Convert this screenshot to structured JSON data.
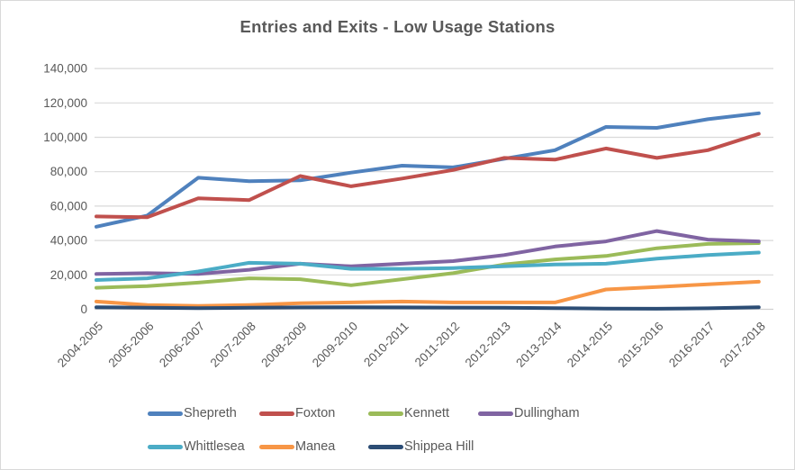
{
  "window": {
    "background": "#ffffff",
    "border_color": "#d9d9d9"
  },
  "chart_data": {
    "type": "line",
    "title": "Entries and Exits - Low Usage Stations",
    "title_color": "#595959",
    "text_color": "#595959",
    "gridline_color": "#d9d9d9",
    "axis_line_color": "#d0d0d0",
    "grid": "horizontal",
    "legend_position": "bottom",
    "xlabel": "",
    "ylabel": "",
    "ylim": [
      0,
      140000
    ],
    "ytick_step": 20000,
    "ytick_labels": [
      "0",
      "20,000",
      "40,000",
      "60,000",
      "80,000",
      "100,000",
      "120,000",
      "140,000"
    ],
    "categories": [
      "2004-2005",
      "2005-2006",
      "2006-2007",
      "2007-2008",
      "2008-2009",
      "2009-2010",
      "2010-2011",
      "2011-2012",
      "2012-2013",
      "2013-2014",
      "2014-2015",
      "2015-2016",
      "2016-2017",
      "2017-2018"
    ],
    "series": [
      {
        "name": "Shepreth",
        "color": "#4F81BD",
        "values": [
          48000,
          54500,
          76500,
          74500,
          75000,
          79500,
          83500,
          82500,
          87500,
          92500,
          106000,
          105500,
          110500,
          114000
        ]
      },
      {
        "name": "Foxton",
        "color": "#C0504D",
        "values": [
          54000,
          53500,
          64500,
          63500,
          77500,
          71500,
          76000,
          81000,
          88000,
          87000,
          93500,
          88000,
          92500,
          102000
        ]
      },
      {
        "name": "Kennett",
        "color": "#9BBB59",
        "values": [
          12500,
          13500,
          15500,
          18000,
          17500,
          14000,
          17500,
          21000,
          26000,
          29000,
          31000,
          35500,
          38000,
          38500
        ]
      },
      {
        "name": "Dullingham",
        "color": "#8064A2",
        "values": [
          20500,
          21000,
          20500,
          23000,
          26500,
          25000,
          26500,
          28000,
          31500,
          36500,
          39500,
          45500,
          40500,
          39500
        ]
      },
      {
        "name": "Whittlesea",
        "color": "#4BACC6",
        "values": [
          17000,
          18000,
          22000,
          27000,
          26500,
          23500,
          23500,
          24000,
          25000,
          26000,
          26500,
          29500,
          31500,
          33000
        ]
      },
      {
        "name": "Manea",
        "color": "#F79646",
        "values": [
          4500,
          2500,
          2000,
          2500,
          3500,
          4000,
          4500,
          4000,
          4000,
          4000,
          11500,
          13000,
          14500,
          16000
        ]
      },
      {
        "name": "Shippea Hill",
        "color": "#2C4D75",
        "values": [
          1200,
          900,
          700,
          900,
          1100,
          1200,
          1100,
          1000,
          900,
          700,
          400,
          300,
          600,
          1200
        ]
      }
    ],
    "legend_rows": [
      [
        "Shepreth",
        "Foxton",
        "Kennett",
        "Dullingham"
      ],
      [
        "Whittlesea",
        "Manea",
        "Shippea Hill"
      ]
    ]
  }
}
